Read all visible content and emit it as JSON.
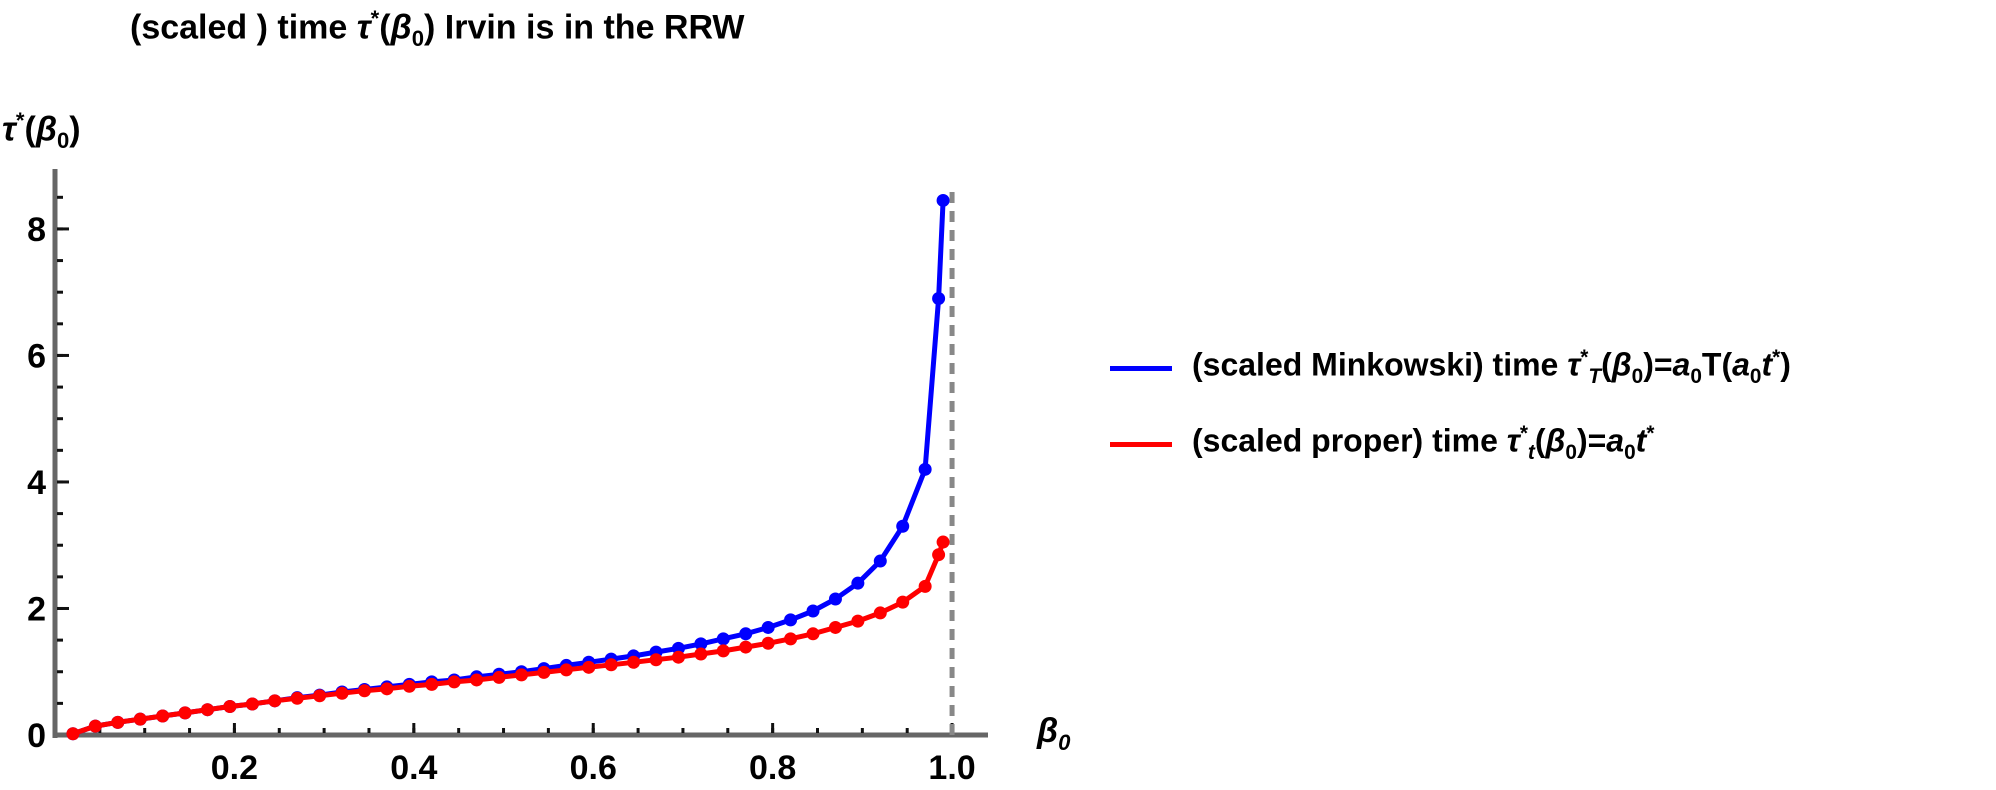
{
  "chart_data": {
    "type": "line",
    "title": "(scaled ) time τ*(β0) Irvin is in the RRW",
    "xlabel": "β0",
    "ylabel": "τ*(β0)",
    "xlim": [
      0,
      1.02
    ],
    "ylim": [
      0,
      8.9
    ],
    "x_ticks": [
      0.2,
      0.4,
      0.6,
      0.8,
      1.0
    ],
    "x_tick_labels": [
      "0.2",
      "0.4",
      "0.6",
      "0.8",
      "1.0"
    ],
    "y_ticks": [
      0,
      2,
      4,
      6,
      8
    ],
    "y_tick_labels": [
      "0",
      "2",
      "4",
      "6",
      "8"
    ],
    "asymptote_x": 1.0,
    "legend_position": "right",
    "series": [
      {
        "name": "(scaled Minkowski) time τ*T(β0)=a0T(a0t*)",
        "color": "#0000ff",
        "x": [
          0.02,
          0.045,
          0.07,
          0.095,
          0.12,
          0.145,
          0.17,
          0.195,
          0.22,
          0.245,
          0.27,
          0.295,
          0.32,
          0.345,
          0.37,
          0.395,
          0.42,
          0.445,
          0.47,
          0.495,
          0.52,
          0.545,
          0.57,
          0.595,
          0.62,
          0.645,
          0.67,
          0.695,
          0.72,
          0.745,
          0.77,
          0.795,
          0.82,
          0.845,
          0.87,
          0.895,
          0.92,
          0.945,
          0.97,
          0.985,
          0.99
        ],
        "y": [
          0.02,
          0.14,
          0.2,
          0.25,
          0.3,
          0.35,
          0.4,
          0.45,
          0.49,
          0.54,
          0.59,
          0.63,
          0.68,
          0.72,
          0.76,
          0.8,
          0.84,
          0.87,
          0.92,
          0.96,
          1.0,
          1.05,
          1.1,
          1.15,
          1.2,
          1.25,
          1.31,
          1.37,
          1.44,
          1.52,
          1.6,
          1.7,
          1.82,
          1.96,
          2.15,
          2.4,
          2.75,
          3.3,
          4.2,
          6.9,
          8.45
        ]
      },
      {
        "name": "(scaled proper) time τ*t(β0)=a0t*",
        "color": "#ff0000",
        "x": [
          0.02,
          0.045,
          0.07,
          0.095,
          0.12,
          0.145,
          0.17,
          0.195,
          0.22,
          0.245,
          0.27,
          0.295,
          0.32,
          0.345,
          0.37,
          0.395,
          0.42,
          0.445,
          0.47,
          0.495,
          0.52,
          0.545,
          0.57,
          0.595,
          0.62,
          0.645,
          0.67,
          0.695,
          0.72,
          0.745,
          0.77,
          0.795,
          0.82,
          0.845,
          0.87,
          0.895,
          0.92,
          0.945,
          0.97,
          0.985,
          0.99
        ],
        "y": [
          0.02,
          0.14,
          0.2,
          0.25,
          0.3,
          0.35,
          0.4,
          0.45,
          0.49,
          0.54,
          0.58,
          0.62,
          0.66,
          0.7,
          0.73,
          0.77,
          0.8,
          0.84,
          0.87,
          0.91,
          0.95,
          0.99,
          1.03,
          1.07,
          1.11,
          1.15,
          1.19,
          1.23,
          1.28,
          1.33,
          1.39,
          1.45,
          1.52,
          1.6,
          1.7,
          1.8,
          1.93,
          2.1,
          2.35,
          2.85,
          3.05
        ]
      }
    ]
  }
}
